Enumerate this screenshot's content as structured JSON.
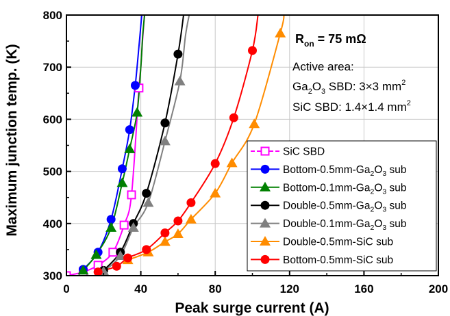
{
  "chart_data": {
    "type": "line",
    "xlabel": "Peak surge current (A)",
    "ylabel": "Maximum junction temp. (K)",
    "xlim": [
      0,
      200
    ],
    "ylim": [
      300,
      800
    ],
    "xticks": [
      0,
      40,
      80,
      120,
      160,
      200
    ],
    "yticks": [
      300,
      400,
      500,
      600,
      700,
      800
    ],
    "x_tick_labels": [
      "0",
      "40",
      "80",
      "120",
      "160",
      "200"
    ],
    "y_tick_labels": [
      "300",
      "400",
      "500",
      "600",
      "700",
      "800"
    ],
    "grid": true,
    "legend_position": "bottom-right",
    "annotations": {
      "ron": {
        "main": "R",
        "sub": "on",
        "rest": " = 75 mΩ"
      },
      "active_area": "Active area:",
      "ga2o3_area": {
        "a": "Ga",
        "s1": "2",
        "b": "O",
        "s2": "3",
        "c": " SBD: 3×3 mm",
        "sup": "2"
      },
      "sic_area": {
        "a": "SiC SBD: 1.4×1.4 mm",
        "sup": "2"
      }
    },
    "series": [
      {
        "name": "SiC SBD",
        "label_parts": {
          "a": "SiC SBD"
        },
        "color": "#ff00ff",
        "marker": "open-square",
        "x": [
          0,
          9,
          17,
          25,
          31,
          35,
          39
        ],
        "y": [
          300,
          307,
          320,
          345,
          397,
          455,
          660
        ],
        "curve_ext": [
          [
            40,
            700
          ],
          [
            41,
            755
          ],
          [
            42,
            800
          ]
        ]
      },
      {
        "name": "Bottom-0.5mm-Ga2O3 sub",
        "label_parts": {
          "a": "Bottom-0.5mm-Ga",
          "s1": "2",
          "b": "O",
          "s2": "3",
          "c": " sub"
        },
        "color": "#0000ff",
        "marker": "circle",
        "x": [
          9,
          17,
          24,
          30,
          34,
          37
        ],
        "y": [
          312,
          345,
          408,
          505,
          580,
          665
        ],
        "curve_ext": [
          [
            39,
            740
          ],
          [
            40.5,
            800
          ]
        ]
      },
      {
        "name": "Bottom-0.1mm-Ga2O3 sub",
        "label_parts": {
          "a": "Bottom-0.1mm-Ga",
          "s1": "2",
          "b": "O",
          "s2": "3",
          "c": " sub"
        },
        "color": "#008000",
        "marker": "triangle",
        "x": [
          9,
          16,
          24,
          30,
          34,
          38
        ],
        "y": [
          310,
          340,
          392,
          478,
          543,
          613
        ],
        "curve_ext": [
          [
            40,
            700
          ],
          [
            41,
            760
          ],
          [
            42,
            800
          ]
        ]
      },
      {
        "name": "Double-0.5mm-Ga2O3 sub",
        "label_parts": {
          "a": "Double-0.5mm-Ga",
          "s1": "2",
          "b": "O",
          "s2": "3",
          "c": " sub"
        },
        "color": "#000000",
        "marker": "circle",
        "x": [
          20,
          29,
          36,
          43,
          53,
          60
        ],
        "y": [
          310,
          345,
          400,
          458,
          593,
          725
        ],
        "curve_ext": [
          [
            63,
            800
          ]
        ]
      },
      {
        "name": "Double-0.1mm-Ga2O3 sub",
        "label_parts": {
          "a": "Double-0.1mm-Ga",
          "s1": "2",
          "b": "O",
          "s2": "3",
          "c": " sub"
        },
        "color": "#808080",
        "marker": "triangle",
        "x": [
          20,
          29,
          36,
          44,
          53,
          61
        ],
        "y": [
          308,
          338,
          392,
          440,
          558,
          673
        ],
        "curve_ext": [
          [
            64,
            760
          ],
          [
            66,
            800
          ]
        ]
      },
      {
        "name": "Double-0.5mm-SiC sub",
        "label_parts": {
          "a": "Double-0.5mm-SiC sub"
        },
        "color": "#ff8c00",
        "marker": "triangle",
        "x": [
          33,
          44,
          53,
          60,
          67,
          80,
          89,
          101,
          115
        ],
        "y": [
          330,
          345,
          365,
          380,
          408,
          458,
          516,
          591,
          765
        ],
        "curve_ext": [
          [
            117,
            800
          ]
        ]
      },
      {
        "name": "Bottom-0.5mm-SiC sub",
        "label_parts": {
          "a": "Bottom-0.5mm-SiC sub"
        },
        "color": "#ff0000",
        "marker": "circle",
        "x": [
          17,
          27,
          33,
          43,
          53,
          60,
          67,
          80,
          90,
          100
        ],
        "y": [
          307,
          318,
          334,
          350,
          382,
          405,
          440,
          515,
          603,
          732
        ],
        "curve_ext": [
          [
            103,
            800
          ]
        ]
      }
    ]
  }
}
